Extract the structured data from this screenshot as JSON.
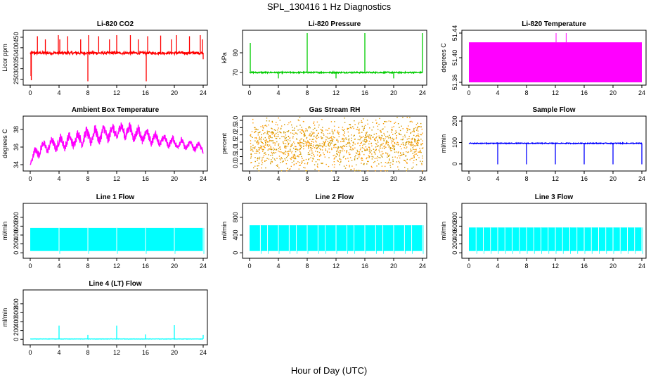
{
  "figure": {
    "title": "SPL_130416  1 Hz Diagnostics",
    "xlabel": "Hour of Day (UTC)"
  },
  "chart_data": [
    {
      "type": "line",
      "title": "Li-820 CO2",
      "ylabel": "Licor ppm",
      "color": "#ff0000",
      "xlim": [
        0,
        24
      ],
      "ylim": [
        235,
        470
      ],
      "xticks": [
        0,
        4,
        8,
        12,
        16,
        20,
        24
      ],
      "yticks": [
        250,
        300,
        350,
        400,
        450
      ],
      "baseline": 375,
      "noise": 6,
      "spikes": [
        {
          "x": 0.1,
          "y": 265
        },
        {
          "x": 0.15,
          "y": 245
        },
        {
          "x": 1.0,
          "y": 455
        },
        {
          "x": 2.1,
          "y": 440
        },
        {
          "x": 3.9,
          "y": 460
        },
        {
          "x": 4.1,
          "y": 440
        },
        {
          "x": 5.2,
          "y": 455
        },
        {
          "x": 7.0,
          "y": 440
        },
        {
          "x": 8.0,
          "y": 240
        },
        {
          "x": 8.1,
          "y": 460
        },
        {
          "x": 9.5,
          "y": 455
        },
        {
          "x": 11.0,
          "y": 440
        },
        {
          "x": 12.0,
          "y": 460
        },
        {
          "x": 13.9,
          "y": 460
        },
        {
          "x": 15.0,
          "y": 440
        },
        {
          "x": 16.1,
          "y": 240
        },
        {
          "x": 16.3,
          "y": 455
        },
        {
          "x": 18.1,
          "y": 458
        },
        {
          "x": 19.6,
          "y": 440
        },
        {
          "x": 20.3,
          "y": 460
        },
        {
          "x": 22.1,
          "y": 455
        },
        {
          "x": 23.6,
          "y": 460
        },
        {
          "x": 23.9,
          "y": 440
        },
        {
          "x": 24.0,
          "y": 345
        }
      ]
    },
    {
      "type": "line",
      "title": "Li-820 Pressure",
      "ylabel": "kPa",
      "color": "#00cc00",
      "xlim": [
        0,
        24
      ],
      "ylim": [
        65,
        90
      ],
      "xticks": [
        0,
        4,
        8,
        12,
        16,
        20,
        24
      ],
      "yticks": [
        70,
        80
      ],
      "baseline": 70,
      "noise": 0.3,
      "spikes": [
        {
          "x": 0.1,
          "y": 85
        },
        {
          "x": 4.0,
          "y": 67
        },
        {
          "x": 8.0,
          "y": 90
        },
        {
          "x": 12.0,
          "y": 67
        },
        {
          "x": 16.0,
          "y": 90
        },
        {
          "x": 20.0,
          "y": 67
        },
        {
          "x": 24.0,
          "y": 90
        }
      ]
    },
    {
      "type": "area",
      "title": "Li-820 Temperature",
      "ylabel": "degrees C",
      "color": "#ff00ff",
      "xlim": [
        0,
        24
      ],
      "ylim": [
        51.36,
        51.44
      ],
      "xticks": [
        0,
        4,
        8,
        12,
        16,
        20,
        24
      ],
      "yticks": [
        51.36,
        51.4,
        51.44
      ],
      "fill_low": 51.36,
      "fill_high": 51.425,
      "spikes": [
        {
          "x": 12.1,
          "y": 51.44
        },
        {
          "x": 13.5,
          "y": 51.44
        }
      ]
    },
    {
      "type": "line",
      "title": "Ambient Box Temperature",
      "ylabel": "degrees C",
      "color": "#ff00ff",
      "xlim": [
        0,
        24
      ],
      "ylim": [
        33.6,
        39.2
      ],
      "xticks": [
        0,
        4,
        8,
        12,
        16,
        20,
        24
      ],
      "yticks": [
        34,
        36,
        38
      ],
      "envelope": [
        {
          "x": 0,
          "low": 33.8,
          "high": 34.8
        },
        {
          "x": 1,
          "low": 34.7,
          "high": 36.6
        },
        {
          "x": 2,
          "low": 35.2,
          "high": 36.9
        },
        {
          "x": 4,
          "low": 35.5,
          "high": 37.4
        },
        {
          "x": 6,
          "low": 35.8,
          "high": 37.8
        },
        {
          "x": 8,
          "low": 36.1,
          "high": 38.3
        },
        {
          "x": 10,
          "low": 36.3,
          "high": 38.6
        },
        {
          "x": 13,
          "low": 36.8,
          "high": 39.0
        },
        {
          "x": 16,
          "low": 36.3,
          "high": 38.2
        },
        {
          "x": 18,
          "low": 36.0,
          "high": 37.6
        },
        {
          "x": 20,
          "low": 35.8,
          "high": 37.2
        },
        {
          "x": 22,
          "low": 35.5,
          "high": 36.9
        },
        {
          "x": 24,
          "low": 35.3,
          "high": 36.6
        }
      ]
    },
    {
      "type": "scatter",
      "title": "Gas Stream RH",
      "ylabel": "percent",
      "color": "#ff9900",
      "color2": "#cc9900",
      "xlim": [
        0,
        24
      ],
      "ylim": [
        -0.3,
        3.1
      ],
      "xticks": [
        0,
        4,
        8,
        12,
        16,
        20,
        24
      ],
      "yticks": [
        0.0,
        0.5,
        1.0,
        1.5,
        2.0,
        2.5,
        3.0
      ],
      "ytick_labels": [
        "0.0",
        "0.5",
        "1.0",
        "1.5",
        "2.0",
        "2.5",
        "3.0"
      ],
      "band_low": 0.0,
      "band_high": 2.7
    },
    {
      "type": "line",
      "title": "Sample Flow",
      "ylabel": "ml/min",
      "color": "#0000ff",
      "xlim": [
        0,
        24
      ],
      "ylim": [
        -20,
        210
      ],
      "xticks": [
        0,
        4,
        8,
        12,
        16,
        20,
        24
      ],
      "yticks": [
        0,
        100,
        200
      ],
      "baseline": 96,
      "noise": 2,
      "spikes": [
        {
          "x": 4.0,
          "y": -2
        },
        {
          "x": 8.0,
          "y": -2
        },
        {
          "x": 12.0,
          "y": -2
        },
        {
          "x": 16.0,
          "y": -2
        },
        {
          "x": 20.0,
          "y": -2
        },
        {
          "x": 24.0,
          "y": -2
        }
      ]
    },
    {
      "type": "area",
      "title": "Line 1 Flow",
      "ylabel": "ml/min",
      "color": "#00ffff",
      "xlim": [
        0,
        24
      ],
      "ylim": [
        -60,
        1050
      ],
      "xticks": [
        0,
        4,
        8,
        12,
        16,
        20,
        24
      ],
      "yticks": [
        0,
        200,
        400,
        600,
        800
      ],
      "fill_low": 40,
      "fill_high": 560,
      "dips": [
        4,
        8,
        12,
        16,
        20,
        24
      ]
    },
    {
      "type": "area",
      "title": "Line 2 Flow",
      "ylabel": "ml/min",
      "color": "#00ffff",
      "xlim": [
        0,
        24
      ],
      "ylim": [
        -60,
        1050
      ],
      "xticks": [
        0,
        4,
        8,
        12,
        16,
        20,
        24
      ],
      "yticks": [
        0,
        400,
        800
      ],
      "fill_low": 40,
      "fill_high": 620,
      "dips": [
        1.5,
        2.5,
        4,
        5.5,
        6.5,
        8,
        9.5,
        10.5,
        12,
        13.5,
        14.5,
        16,
        17.5,
        18.5,
        20,
        21.5,
        22.5,
        24
      ]
    },
    {
      "type": "area",
      "title": "Line 3 Flow",
      "ylabel": "ml/min",
      "color": "#00ffff",
      "xlim": [
        0,
        24
      ],
      "ylim": [
        -60,
        1050
      ],
      "xticks": [
        0,
        4,
        8,
        12,
        16,
        20,
        24
      ],
      "yticks": [
        0,
        200,
        400,
        600,
        800
      ],
      "fill_low": 40,
      "fill_high": 570,
      "dips": [
        1,
        2,
        3,
        4,
        5,
        6,
        7,
        8,
        9,
        10,
        11,
        12,
        13,
        14,
        15,
        16,
        17,
        18,
        19,
        20,
        21,
        22,
        23,
        24
      ]
    },
    {
      "type": "line",
      "title": "Line 4 (LT) Flow",
      "ylabel": "ml/min",
      "color": "#00ffff",
      "xlim": [
        0,
        24
      ],
      "ylim": [
        -60,
        1050
      ],
      "xticks": [
        0,
        4,
        8,
        12,
        16,
        20,
        24
      ],
      "yticks": [
        0,
        200,
        400,
        600,
        800
      ],
      "baseline": 8,
      "noise": 3,
      "spikes": [
        {
          "x": 4.0,
          "y": 310
        },
        {
          "x": 8.0,
          "y": 100
        },
        {
          "x": 12.0,
          "y": 310
        },
        {
          "x": 16.0,
          "y": 110
        },
        {
          "x": 20.0,
          "y": 320
        },
        {
          "x": 24.0,
          "y": 100
        }
      ]
    }
  ]
}
